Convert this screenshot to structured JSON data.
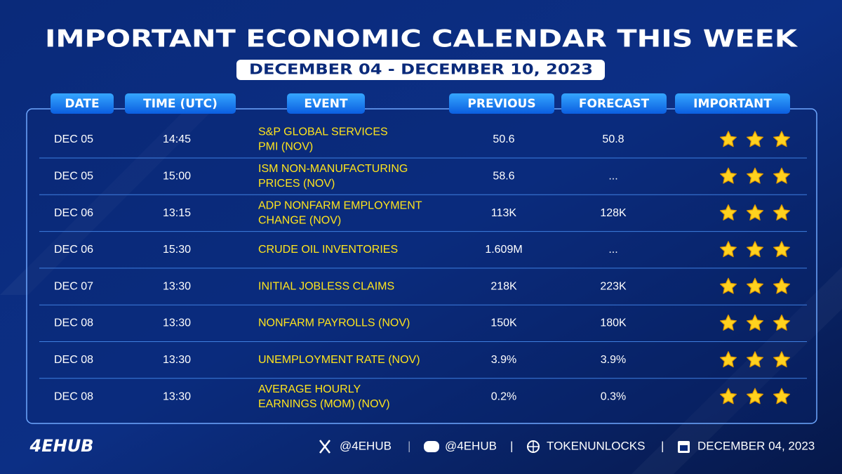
{
  "header": {
    "title": "IMPORTANT ECONOMIC CALENDAR THIS WEEK",
    "subtitle": "DECEMBER 04 - DECEMBER 10, 2023"
  },
  "table": {
    "columns": [
      "DATE",
      "TIME (UTC)",
      "EVENT",
      "PREVIOUS",
      "FORECAST",
      "IMPORTANT"
    ],
    "rows": [
      {
        "date": "DEC 05",
        "time": "14:45",
        "event": [
          "S&P GLOBAL SERVICES",
          "PMI (NOV)"
        ],
        "previous": "50.6",
        "forecast": "50.8",
        "importance": 3
      },
      {
        "date": "DEC 05",
        "time": "15:00",
        "event": [
          "ISM NON-MANUFACTURING",
          "PRICES (NOV)"
        ],
        "previous": "58.6",
        "forecast": "...",
        "importance": 3
      },
      {
        "date": "DEC 06",
        "time": "13:15",
        "event": [
          "ADP NONFARM EMPLOYMENT",
          "CHANGE (NOV)"
        ],
        "previous": "113K",
        "forecast": "128K",
        "importance": 3
      },
      {
        "date": "DEC 06",
        "time": "15:30",
        "event": [
          "CRUDE OIL INVENTORIES"
        ],
        "previous": "1.609M",
        "forecast": "...",
        "importance": 3
      },
      {
        "date": "DEC 07",
        "time": "13:30",
        "event": [
          "INITIAL JOBLESS CLAIMS"
        ],
        "previous": "218K",
        "forecast": "223K",
        "importance": 3
      },
      {
        "date": "DEC 08",
        "time": "13:30",
        "event": [
          "NONFARM PAYROLLS (NOV)"
        ],
        "previous": "150K",
        "forecast": "180K",
        "importance": 3
      },
      {
        "date": "DEC 08",
        "time": "13:30",
        "event": [
          "UNEMPLOYMENT RATE (NOV)"
        ],
        "previous": "3.9%",
        "forecast": "3.9%",
        "importance": 3
      },
      {
        "date": "DEC 08",
        "time": "13:30",
        "event": [
          "AVERAGE HOURLY",
          "EARNINGS (MOM) (NOV)"
        ],
        "previous": "0.2%",
        "forecast": "0.3%",
        "importance": 3
      }
    ]
  },
  "footer": {
    "logo": "4EHUB",
    "x": "@4EHUB",
    "discord": "@4EHUB",
    "web": "TOKENUNLOCKS",
    "date": "DECEMBER 04, 2023"
  }
}
